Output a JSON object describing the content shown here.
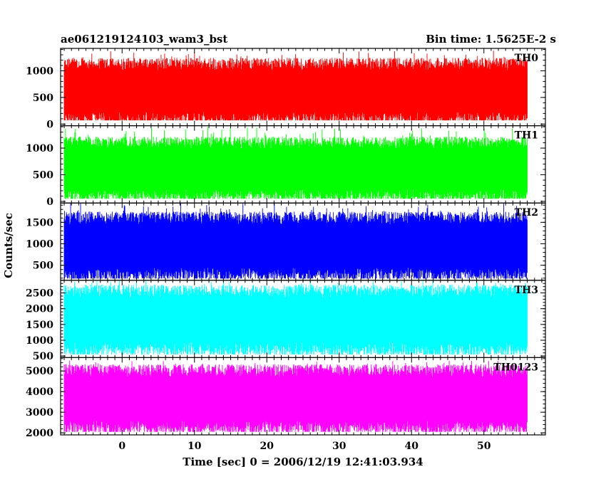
{
  "header": {
    "title": "ae061219124103_wam3_bst",
    "bin_time": "Bin time: 1.5625E-2 s"
  },
  "chart_data": {
    "type": "line",
    "title": "ae061219124103_wam3_bst",
    "subtitle": "Bin time: 1.5625E-2 s",
    "xlabel": "Time [sec] 0 = 2006/12/19 12:41:03.934",
    "ylabel": "Counts/sec",
    "xlim": [
      -8.5,
      58.5
    ],
    "x_ticks": [
      0,
      10,
      20,
      30,
      40,
      50
    ],
    "x_tick_labels": [
      "0",
      "10",
      "20",
      "30",
      "40",
      "50"
    ],
    "data_range": [
      -8,
      56
    ],
    "grid": false,
    "legend": "none",
    "panels": [
      {
        "name": "TH0",
        "color": "#ff0000",
        "ylim": [
          -30,
          1420
        ],
        "y_ticks": [
          0,
          500,
          1000
        ],
        "y_tick_labels": [
          "0",
          "500",
          "1000"
        ],
        "band_low": 230,
        "band_high": 1010,
        "min": 70,
        "max": 1380
      },
      {
        "name": "TH1",
        "color": "#00ff00",
        "ylim": [
          -30,
          1420
        ],
        "y_ticks": [
          0,
          500,
          1000
        ],
        "y_tick_labels": [
          "0",
          "500",
          "1000"
        ],
        "band_low": 230,
        "band_high": 990,
        "min": 50,
        "max": 1390
      },
      {
        "name": "TH2",
        "color": "#0000ff",
        "ylim": [
          150,
          1950
        ],
        "y_ticks": [
          500,
          1000,
          1500
        ],
        "y_tick_labels": [
          "500",
          "1000",
          "1500"
        ],
        "band_low": 450,
        "band_high": 1450,
        "min": 190,
        "max": 1950
      },
      {
        "name": "TH3",
        "color": "#00ffff",
        "ylim": [
          450,
          2900
        ],
        "y_ticks": [
          500,
          1000,
          1500,
          2000,
          2500
        ],
        "y_tick_labels": [
          "500",
          "1000",
          "1500",
          "2000",
          "2500"
        ],
        "band_low": 950,
        "band_high": 2350,
        "min": 550,
        "max": 2900
      },
      {
        "name": "TH0123",
        "color": "#ff00ff",
        "ylim": [
          1900,
          5650
        ],
        "y_ticks": [
          2000,
          3000,
          4000,
          5000
        ],
        "y_tick_labels": [
          "2000",
          "3000",
          "4000",
          "5000"
        ],
        "band_low": 2600,
        "band_high": 4700,
        "min": 2050,
        "max": 5500
      }
    ]
  }
}
